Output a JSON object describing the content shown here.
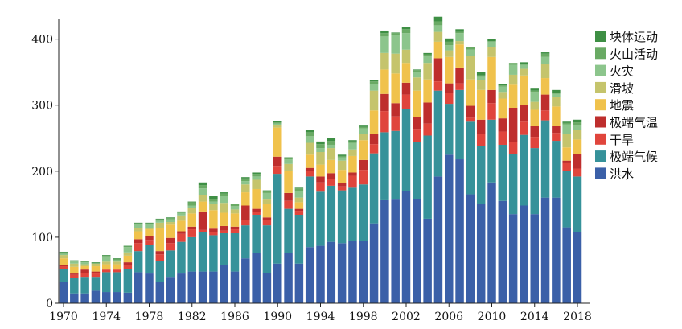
{
  "chart_data": {
    "type": "bar",
    "stacked": true,
    "title": "",
    "xlabel": "",
    "ylabel": "",
    "ylim": [
      0,
      430
    ],
    "xlim": [
      1970,
      2018
    ],
    "grid": false,
    "legend_position": "right",
    "x_ticks": [
      "1970",
      "1974",
      "1978",
      "1982",
      "1986",
      "1990",
      "1994",
      "1998",
      "2002",
      "2006",
      "2010",
      "2014",
      "2018"
    ],
    "y_ticks": [
      "0",
      "100",
      "200",
      "300",
      "400"
    ],
    "x": [
      1970,
      1971,
      1972,
      1973,
      1974,
      1975,
      1976,
      1977,
      1978,
      1979,
      1980,
      1981,
      1982,
      1983,
      1984,
      1985,
      1986,
      1987,
      1988,
      1989,
      1990,
      1991,
      1992,
      1993,
      1994,
      1995,
      1996,
      1997,
      1998,
      1999,
      2000,
      2001,
      2002,
      2003,
      2004,
      2005,
      2006,
      2007,
      2008,
      2009,
      2010,
      2011,
      2012,
      2013,
      2014,
      2015,
      2016,
      2017,
      2018
    ],
    "series": [
      {
        "name": "洪水",
        "color": "#3b60a8",
        "values": [
          32,
          15,
          15,
          19,
          17,
          17,
          16,
          47,
          45,
          32,
          40,
          45,
          48,
          48,
          48,
          58,
          48,
          68,
          76,
          46,
          60,
          76,
          60,
          85,
          87,
          93,
          91,
          95,
          95,
          121,
          156,
          157,
          170,
          158,
          128,
          192,
          225,
          218,
          165,
          150,
          183,
          155,
          135,
          148,
          135,
          160,
          160,
          115,
          108
        ]
      },
      {
        "name": "极端气候",
        "color": "#36929a",
        "values": [
          20,
          23,
          25,
          21,
          30,
          30,
          36,
          32,
          43,
          32,
          40,
          48,
          52,
          60,
          55,
          48,
          58,
          50,
          58,
          72,
          136,
          67,
          74,
          107,
          82,
          85,
          80,
          80,
          85,
          106,
          103,
          104,
          124,
          86,
          126,
          130,
          77,
          105,
          110,
          88,
          95,
          85,
          91,
          107,
          100,
          117,
          86,
          85,
          84
        ]
      },
      {
        "name": "干旱",
        "color": "#e0453c",
        "values": [
          4,
          5,
          6,
          5,
          4,
          4,
          6,
          12,
          8,
          10,
          11,
          12,
          12,
          3,
          5,
          4,
          6,
          8,
          4,
          8,
          12,
          12,
          6,
          8,
          14,
          10,
          6,
          18,
          22,
          14,
          32,
          22,
          22,
          20,
          18,
          14,
          17,
          10,
          6,
          18,
          25,
          20,
          18,
          20,
          17,
          15,
          12,
          12,
          12
        ]
      },
      {
        "name": "极端气温",
        "color": "#be2e2d",
        "values": [
          2,
          2,
          5,
          3,
          0,
          0,
          4,
          6,
          6,
          5,
          8,
          4,
          4,
          28,
          5,
          7,
          4,
          22,
          5,
          4,
          14,
          12,
          3,
          5,
          9,
          9,
          5,
          5,
          15,
          16,
          26,
          20,
          18,
          18,
          32,
          35,
          14,
          24,
          18,
          22,
          20,
          20,
          52,
          25,
          16,
          24,
          10,
          4,
          22
        ]
      },
      {
        "name": "地震",
        "color": "#f0c24c",
        "values": [
          10,
          10,
          5,
          8,
          8,
          8,
          10,
          12,
          10,
          35,
          20,
          16,
          20,
          15,
          28,
          20,
          20,
          20,
          30,
          20,
          44,
          34,
          10,
          20,
          18,
          20,
          20,
          25,
          30,
          35,
          37,
          45,
          30,
          40,
          35,
          25,
          40,
          35,
          40,
          45,
          50,
          30,
          35,
          45,
          25,
          25,
          30,
          20,
          22
        ]
      },
      {
        "name": "滑坡",
        "color": "#c5c46c",
        "values": [
          5,
          5,
          3,
          4,
          4,
          4,
          5,
          5,
          2,
          8,
          4,
          8,
          8,
          10,
          10,
          15,
          6,
          12,
          14,
          7,
          4,
          10,
          7,
          18,
          19,
          18,
          14,
          10,
          10,
          30,
          25,
          30,
          20,
          20,
          25,
          15,
          10,
          5,
          35,
          15,
          15,
          10,
          15,
          10,
          12,
          22,
          14,
          20,
          14
        ]
      },
      {
        "name": "火灾",
        "color": "#8cc58c",
        "values": [
          2,
          3,
          3,
          0,
          8,
          2,
          8,
          5,
          5,
          3,
          4,
          4,
          4,
          10,
          3,
          10,
          5,
          5,
          5,
          10,
          2,
          7,
          10,
          10,
          6,
          5,
          5,
          10,
          8,
          10,
          25,
          28,
          25,
          8,
          10,
          10,
          8,
          12,
          10,
          5,
          8,
          8,
          15,
          6,
          15,
          10,
          5,
          15,
          8
        ]
      },
      {
        "name": "火山活动",
        "color": "#69aa64",
        "values": [
          2,
          1,
          1,
          1,
          1,
          2,
          1,
          2,
          2,
          2,
          2,
          1,
          5,
          5,
          4,
          4,
          3,
          4,
          4,
          3,
          2,
          2,
          4,
          6,
          6,
          6,
          2,
          2,
          2,
          4,
          5,
          3,
          6,
          3,
          3,
          6,
          5,
          2,
          4,
          2,
          1,
          2,
          3,
          2,
          2,
          5,
          2,
          2,
          4
        ]
      },
      {
        "name": "块体运动",
        "color": "#3e8f44",
        "values": [
          1,
          1,
          1,
          1,
          1,
          1,
          1,
          1,
          1,
          1,
          1,
          1,
          1,
          4,
          4,
          2,
          1,
          2,
          2,
          1,
          2,
          1,
          1,
          4,
          4,
          4,
          2,
          2,
          2,
          2,
          4,
          1,
          3,
          1,
          2,
          7,
          5,
          4,
          0,
          5,
          3,
          2,
          0,
          2,
          3,
          2,
          4,
          2,
          4
        ]
      }
    ]
  }
}
